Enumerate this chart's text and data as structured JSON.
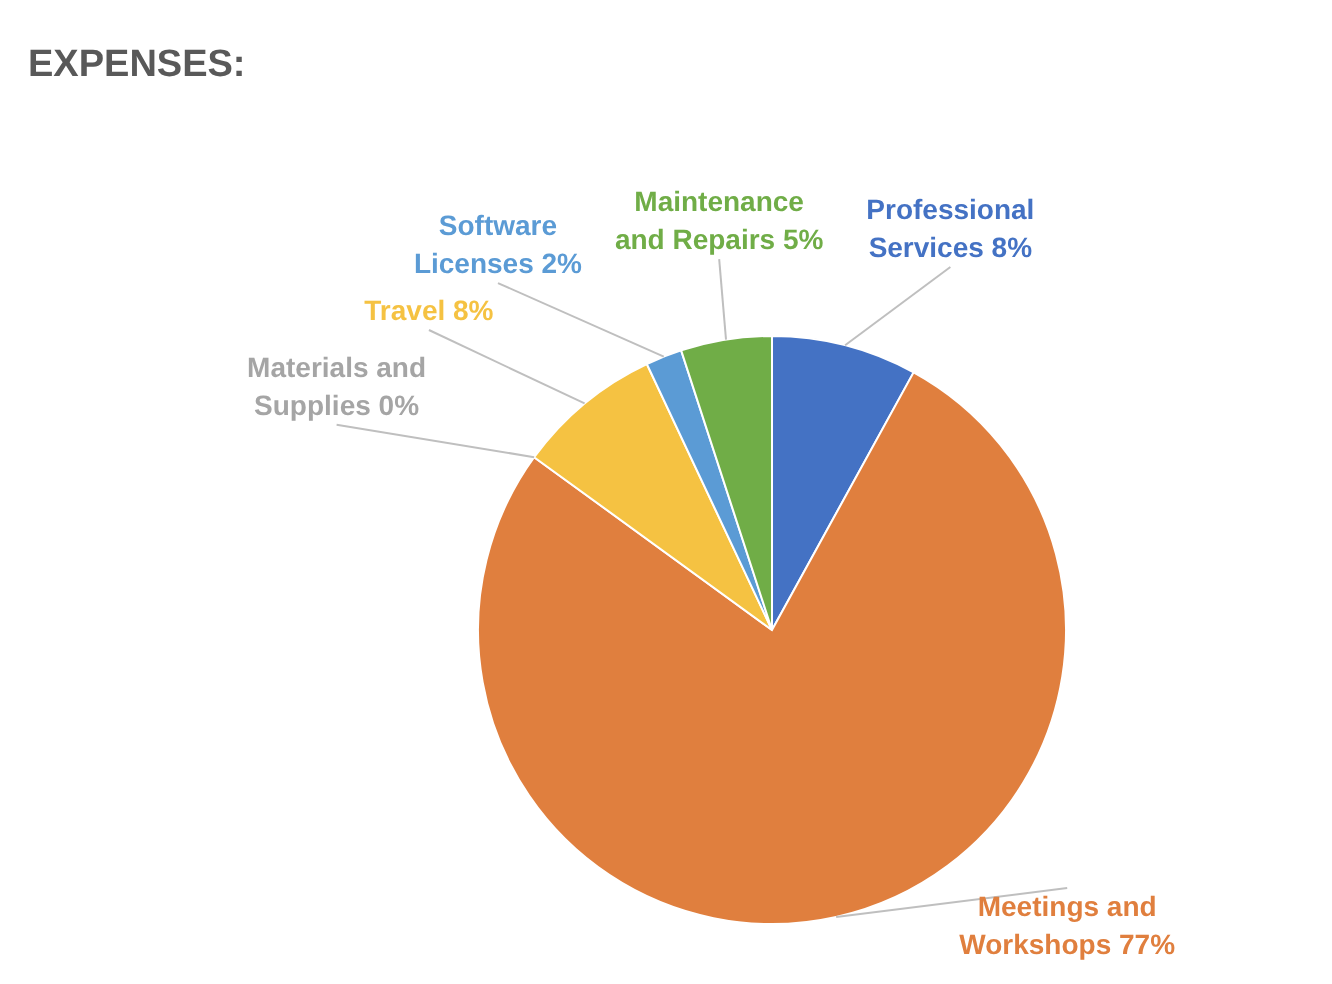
{
  "chart_data": {
    "type": "pie",
    "title": "EXPENSES:",
    "categories": [
      "Professional Services",
      "Meetings and Workshops",
      "Materials and Supplies",
      "Travel",
      "Software Licenses",
      "Maintenance and Repairs"
    ],
    "values": [
      8,
      77,
      0,
      8,
      2,
      5
    ],
    "value_labels": [
      "8%",
      "77%",
      "0%",
      "8%",
      "2%",
      "5%"
    ],
    "colors": [
      "#4472c4",
      "#e07f3e",
      "#a5a5a5",
      "#f5c242",
      "#5b9bd5",
      "#70ad47"
    ]
  }
}
